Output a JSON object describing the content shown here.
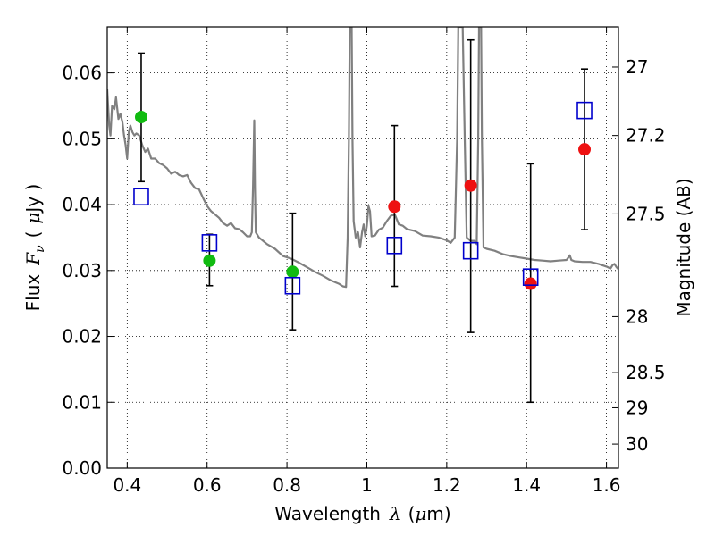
{
  "chart_data": {
    "type": "scatter",
    "title": "",
    "xlabel": "Wavelength",
    "xlabel_symbol": "λ",
    "xlabel_unit_open": "(",
    "xlabel_unit_mu": "μ",
    "xlabel_unit_rest": "m)",
    "ylabel": "Flux",
    "ylabel_symbol_F": "F",
    "ylabel_symbol_sub": "ν",
    "ylabel_unit_open": "(",
    "ylabel_unit_mu": "μ",
    "ylabel_unit_rest": "Jy )",
    "ylabel_right": "Magnitude (AB)",
    "xlim": [
      0.35,
      1.63
    ],
    "ylim": [
      0.0,
      0.067
    ],
    "grid": true,
    "x_ticks": [
      0.4,
      0.6,
      0.8,
      1.0,
      1.2,
      1.4,
      1.6
    ],
    "x_tick_labels": [
      "0.4",
      "0.6",
      "0.8",
      "1",
      "1.2",
      "1.4",
      "1.6"
    ],
    "y_ticks": [
      0.0,
      0.01,
      0.02,
      0.03,
      0.04,
      0.05,
      0.06
    ],
    "y_tick_labels": [
      "0.00",
      "0.01",
      "0.02",
      "0.03",
      "0.04",
      "0.05",
      "0.06"
    ],
    "right_ticks_flux": [
      0.0609,
      0.0505,
      0.0386,
      0.023,
      0.0145,
      0.00916,
      0.00365
    ],
    "right_tick_labels": [
      "27",
      "27.2",
      "27.5",
      "28",
      "28.5",
      "29",
      "30"
    ],
    "colors": {
      "model": "#808080",
      "green": "#11bb11",
      "red": "#ee1111",
      "blue": "#0000cc",
      "error": "#000000"
    },
    "observed_green": [
      {
        "x": 0.435,
        "y": 0.0533,
        "yerr_low": 0.0435,
        "yerr_high": 0.063
      },
      {
        "x": 0.606,
        "y": 0.0315,
        "yerr_low": 0.0277,
        "yerr_high": 0.0355
      },
      {
        "x": 0.814,
        "y": 0.0298,
        "yerr_low": 0.021,
        "yerr_high": 0.0387
      }
    ],
    "observed_red": [
      {
        "x": 1.069,
        "y": 0.0397,
        "yerr_low": 0.0276,
        "yerr_high": 0.052
      },
      {
        "x": 1.26,
        "y": 0.0429,
        "yerr_low": 0.0206,
        "yerr_high": 0.065
      },
      {
        "x": 1.41,
        "y": 0.028,
        "yerr_low": 0.01,
        "yerr_high": 0.0462
      },
      {
        "x": 1.545,
        "y": 0.0484,
        "yerr_low": 0.0362,
        "yerr_high": 0.0606
      }
    ],
    "model_photometry": [
      {
        "x": 0.435,
        "y": 0.0412
      },
      {
        "x": 0.606,
        "y": 0.0342
      },
      {
        "x": 0.814,
        "y": 0.0277
      },
      {
        "x": 1.069,
        "y": 0.0338
      },
      {
        "x": 1.26,
        "y": 0.033
      },
      {
        "x": 1.41,
        "y": 0.029
      },
      {
        "x": 1.545,
        "y": 0.0543
      }
    ],
    "model_spectrum": [
      [
        0.35,
        0.0575
      ],
      [
        0.355,
        0.052
      ],
      [
        0.358,
        0.0505
      ],
      [
        0.362,
        0.055
      ],
      [
        0.368,
        0.0545
      ],
      [
        0.372,
        0.0563
      ],
      [
        0.378,
        0.053
      ],
      [
        0.383,
        0.0538
      ],
      [
        0.388,
        0.0525
      ],
      [
        0.392,
        0.0505
      ],
      [
        0.396,
        0.049
      ],
      [
        0.4,
        0.047
      ],
      [
        0.404,
        0.051
      ],
      [
        0.408,
        0.052
      ],
      [
        0.413,
        0.051
      ],
      [
        0.418,
        0.0505
      ],
      [
        0.423,
        0.0508
      ],
      [
        0.43,
        0.0505
      ],
      [
        0.438,
        0.049
      ],
      [
        0.445,
        0.048
      ],
      [
        0.452,
        0.0485
      ],
      [
        0.46,
        0.047
      ],
      [
        0.47,
        0.047
      ],
      [
        0.48,
        0.0463
      ],
      [
        0.49,
        0.046
      ],
      [
        0.5,
        0.0455
      ],
      [
        0.51,
        0.0447
      ],
      [
        0.52,
        0.045
      ],
      [
        0.53,
        0.0445
      ],
      [
        0.54,
        0.0443
      ],
      [
        0.55,
        0.0445
      ],
      [
        0.56,
        0.0433
      ],
      [
        0.57,
        0.0425
      ],
      [
        0.58,
        0.0423
      ],
      [
        0.59,
        0.041
      ],
      [
        0.6,
        0.0398
      ],
      [
        0.61,
        0.039
      ],
      [
        0.62,
        0.0385
      ],
      [
        0.63,
        0.038
      ],
      [
        0.64,
        0.0372
      ],
      [
        0.65,
        0.0368
      ],
      [
        0.66,
        0.0372
      ],
      [
        0.67,
        0.0364
      ],
      [
        0.68,
        0.0363
      ],
      [
        0.69,
        0.0358
      ],
      [
        0.7,
        0.0352
      ],
      [
        0.708,
        0.0352
      ],
      [
        0.712,
        0.0358
      ],
      [
        0.715,
        0.0425
      ],
      [
        0.718,
        0.0528
      ],
      [
        0.72,
        0.0425
      ],
      [
        0.722,
        0.0358
      ],
      [
        0.73,
        0.035
      ],
      [
        0.75,
        0.034
      ],
      [
        0.77,
        0.0333
      ],
      [
        0.79,
        0.0322
      ],
      [
        0.81,
        0.0318
      ],
      [
        0.83,
        0.0312
      ],
      [
        0.85,
        0.0305
      ],
      [
        0.87,
        0.0298
      ],
      [
        0.89,
        0.0292
      ],
      [
        0.91,
        0.0285
      ],
      [
        0.93,
        0.028
      ],
      [
        0.94,
        0.0276
      ],
      [
        0.948,
        0.0275
      ],
      [
        0.952,
        0.035
      ],
      [
        0.955,
        0.05
      ],
      [
        0.957,
        0.066
      ],
      [
        0.958,
        0.067
      ],
      [
        0.962,
        0.067
      ],
      [
        0.964,
        0.05
      ],
      [
        0.967,
        0.0375
      ],
      [
        0.972,
        0.035
      ],
      [
        0.978,
        0.0358
      ],
      [
        0.983,
        0.0335
      ],
      [
        0.988,
        0.0358
      ],
      [
        0.992,
        0.037
      ],
      [
        0.996,
        0.0352
      ],
      [
        1.0,
        0.0368
      ],
      [
        1.004,
        0.0398
      ],
      [
        1.008,
        0.039
      ],
      [
        1.012,
        0.0352
      ],
      [
        1.02,
        0.0353
      ],
      [
        1.03,
        0.0362
      ],
      [
        1.04,
        0.0365
      ],
      [
        1.05,
        0.0375
      ],
      [
        1.06,
        0.0383
      ],
      [
        1.07,
        0.0385
      ],
      [
        1.08,
        0.037
      ],
      [
        1.09,
        0.0368
      ],
      [
        1.1,
        0.0363
      ],
      [
        1.12,
        0.036
      ],
      [
        1.14,
        0.0353
      ],
      [
        1.16,
        0.0352
      ],
      [
        1.18,
        0.035
      ],
      [
        1.2,
        0.0346
      ],
      [
        1.21,
        0.0342
      ],
      [
        1.22,
        0.035
      ],
      [
        1.226,
        0.05
      ],
      [
        1.229,
        0.067
      ],
      [
        1.24,
        0.067
      ],
      [
        1.245,
        0.05
      ],
      [
        1.25,
        0.035
      ],
      [
        1.26,
        0.0345
      ],
      [
        1.27,
        0.0345
      ],
      [
        1.275,
        0.034
      ],
      [
        1.279,
        0.05
      ],
      [
        1.281,
        0.067
      ],
      [
        1.286,
        0.067
      ],
      [
        1.288,
        0.05
      ],
      [
        1.292,
        0.0335
      ],
      [
        1.3,
        0.0333
      ],
      [
        1.32,
        0.033
      ],
      [
        1.34,
        0.0325
      ],
      [
        1.36,
        0.0322
      ],
      [
        1.38,
        0.032
      ],
      [
        1.4,
        0.0318
      ],
      [
        1.42,
        0.0316
      ],
      [
        1.44,
        0.0315
      ],
      [
        1.46,
        0.0314
      ],
      [
        1.48,
        0.0315
      ],
      [
        1.5,
        0.0316
      ],
      [
        1.505,
        0.032
      ],
      [
        1.508,
        0.0323
      ],
      [
        1.512,
        0.0316
      ],
      [
        1.52,
        0.0314
      ],
      [
        1.54,
        0.0313
      ],
      [
        1.56,
        0.0313
      ],
      [
        1.58,
        0.031
      ],
      [
        1.6,
        0.0306
      ],
      [
        1.61,
        0.0303
      ],
      [
        1.615,
        0.0308
      ],
      [
        1.62,
        0.031
      ],
      [
        1.625,
        0.0305
      ],
      [
        1.63,
        0.0302
      ]
    ]
  }
}
